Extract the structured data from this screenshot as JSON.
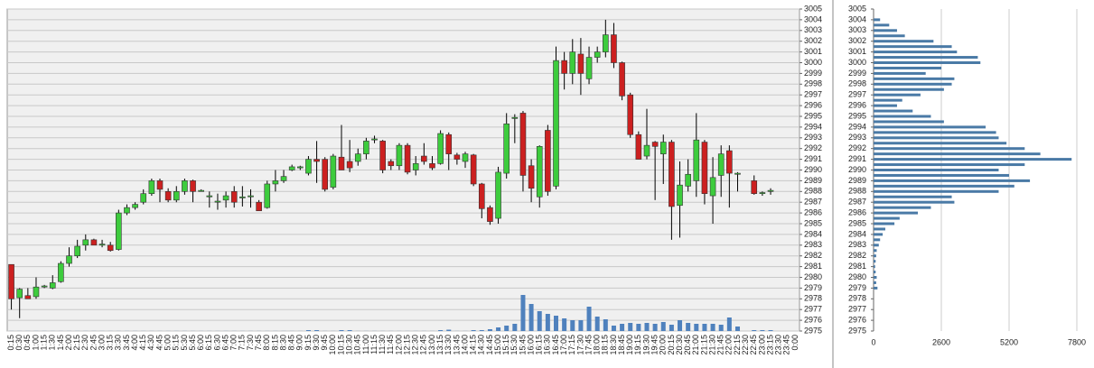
{
  "chart_data": [
    {
      "type": "candlestick",
      "categories": [
        "0:15",
        "0:30",
        "0:45",
        "1:00",
        "1:15",
        "1:30",
        "1:45",
        "2:00",
        "2:15",
        "2:30",
        "2:45",
        "3:00",
        "3:15",
        "3:30",
        "3:45",
        "4:00",
        "4:15",
        "4:30",
        "4:45",
        "5:00",
        "5:15",
        "5:30",
        "5:45",
        "6:00",
        "6:15",
        "6:30",
        "6:45",
        "7:00",
        "7:15",
        "7:30",
        "7:45",
        "8:00",
        "8:15",
        "8:30",
        "8:45",
        "9:00",
        "9:15",
        "9:30",
        "9:45",
        "10:00",
        "10:15",
        "10:30",
        "10:45",
        "11:00",
        "11:15",
        "11:30",
        "11:45",
        "12:00",
        "12:15",
        "12:30",
        "12:45",
        "13:00",
        "13:15",
        "13:30",
        "13:45",
        "14:00",
        "14:15",
        "14:30",
        "14:45",
        "15:00",
        "15:15",
        "15:30",
        "15:45",
        "16:00",
        "16:15",
        "16:30",
        "16:45",
        "17:00",
        "17:15",
        "17:30",
        "17:45",
        "18:00",
        "18:15",
        "18:30",
        "18:45",
        "19:00",
        "19:15",
        "19:30",
        "19:45",
        "20:00",
        "20:15",
        "20:30",
        "20:45",
        "21:00",
        "21:15",
        "21:30",
        "21:45",
        "22:00",
        "22:15",
        "22:30",
        "22:45",
        "23:00",
        "23:15",
        "23:30",
        "23:45",
        "0:00"
      ],
      "open": [
        2981.2,
        2978.1,
        2978.3,
        2978.2,
        2979.1,
        2979,
        2979.6,
        2981.3,
        2982,
        2983,
        2983.5,
        2983,
        2983,
        2982.6,
        2986,
        2986.5,
        2987,
        2987.8,
        2989,
        2988,
        2987.2,
        2988,
        2989,
        2988,
        2987.5,
        2987,
        2987.2,
        2988,
        2987.4,
        2987.5,
        2987,
        2986.5,
        2988.7,
        2989,
        2990,
        2990.2,
        2989.7,
        2991,
        2991,
        2988.4,
        2991.2,
        2990.8,
        2990.8,
        2991.5,
        2992.8,
        2992.7,
        2990.8,
        2990.4,
        2992.3,
        2990,
        2991.3,
        2990.6,
        2990.6,
        2993.3,
        2991.4,
        2990.8,
        2991.4,
        2988.7,
        2986.5,
        2985.5,
        2989.7,
        2994.8,
        2995.3,
        2990.4,
        2987.5,
        2993.7,
        2988.5,
        3000.2,
        2999,
        3000.8,
        2998.5,
        3000.5,
        3001,
        3002.6,
        3000,
        2997,
        2993.3,
        2991.3,
        2992.6,
        2991.5,
        2992.6,
        2986.7,
        2988.5,
        2989,
        2992.6,
        2987.6,
        2989.5,
        2991.8,
        2989.6,
        null,
        2989,
        2987.8,
        2988,
        null,
        null,
        null
      ],
      "high": [
        2981.2,
        2979,
        2979,
        2980,
        2979.3,
        2980.2,
        2981.5,
        2982.8,
        2983.5,
        2984,
        2983.6,
        2983.5,
        2983.3,
        2986.3,
        2986.8,
        2987,
        2988.2,
        2989.2,
        2989.2,
        2988.3,
        2988.5,
        2989.2,
        2989.1,
        2988.2,
        2988,
        2987.8,
        2988,
        2988.5,
        2988.5,
        2988.2,
        2987.2,
        2989,
        2990,
        2990,
        2990.5,
        2990.4,
        2991.3,
        2992.7,
        2991.2,
        2991.5,
        2994.2,
        2992.8,
        2992,
        2993,
        2993.2,
        2992.8,
        2991,
        2992.5,
        2992.5,
        2991.3,
        2992.5,
        2991.3,
        2993.7,
        2993.5,
        2991.6,
        2991.7,
        2991.5,
        2988.8,
        2986.7,
        2990.3,
        2995.3,
        2995.2,
        2995.5,
        2991,
        2992.3,
        2994.2,
        3001.5,
        3001,
        3002.2,
        3002.3,
        3001.5,
        3001.5,
        3004,
        3003.7,
        3000.1,
        2997.2,
        2993.6,
        2995.7,
        2992.7,
        2993.3,
        2992.8,
        2990.8,
        2991,
        2995.3,
        2992.8,
        2991.2,
        2992.3,
        2992.3,
        2989.8,
        null,
        2989.5,
        2988,
        2988.3,
        null,
        null,
        null
      ],
      "low": [
        2977,
        2976.2,
        2978,
        2978,
        2979,
        2978.9,
        2979.5,
        2981,
        2981.8,
        2982.5,
        2983,
        2982.8,
        2982.4,
        2982.5,
        2985.8,
        2986.3,
        2986.8,
        2987.6,
        2987,
        2987,
        2987,
        2987.7,
        2987,
        2988,
        2986.5,
        2986.3,
        2986.5,
        2986.5,
        2986.6,
        2986.5,
        2986.2,
        2986.4,
        2988,
        2988.8,
        2989.9,
        2990,
        2989.5,
        2988.8,
        2988,
        2988.2,
        2990,
        2989.8,
        2990.4,
        2991,
        2992.5,
        2989.7,
        2990,
        2990,
        2989.6,
        2989.5,
        2990.5,
        2990,
        2990.5,
        2990,
        2990.5,
        2990.2,
        2988.5,
        2985.5,
        2984.9,
        2985,
        2989.2,
        2992.5,
        2988,
        2987,
        2986.5,
        2987.6,
        2988.2,
        2997.5,
        2998,
        2997,
        2998,
        3000,
        3000.5,
        2999.5,
        2996.5,
        2993,
        2991,
        2991,
        2987.2,
        2988.7,
        2983.5,
        2983.7,
        2988,
        2987.5,
        2986.8,
        2985,
        2987.5,
        2986.5,
        2988,
        null,
        2987.7,
        2987.6,
        2987.7,
        null,
        null,
        null
      ],
      "close": [
        2978,
        2978.9,
        2978,
        2979.1,
        2979.2,
        2979.5,
        2981.3,
        2982,
        2982.9,
        2983.5,
        2983,
        2983.1,
        2982.5,
        2986,
        2986.5,
        2986.8,
        2987.8,
        2989,
        2988.2,
        2987.2,
        2988,
        2989,
        2988,
        2988.1,
        2987.6,
        2987.1,
        2987.6,
        2987,
        2987.5,
        2987.6,
        2986.2,
        2988.7,
        2989,
        2989.4,
        2990.3,
        2990.3,
        2991,
        2990.8,
        2988.2,
        2991.3,
        2990,
        2990.2,
        2991.5,
        2992.7,
        2992.9,
        2990,
        2990.4,
        2992.3,
        2989.8,
        2990.6,
        2990.8,
        2990.2,
        2993.4,
        2991.5,
        2991,
        2991.5,
        2988.7,
        2986.4,
        2985.2,
        2989.8,
        2994.3,
        2994.9,
        2989.5,
        2988.3,
        2992.2,
        2988,
        3000.2,
        2999,
        3001,
        2999,
        3000.5,
        3001,
        3002.6,
        3000,
        2996.9,
        2993.3,
        2991,
        2992.3,
        2992.2,
        2992.6,
        2986.6,
        2988.6,
        2989.6,
        2992.8,
        2987.8,
        2989.3,
        2991.5,
        2989.7,
        2989.7,
        null,
        2987.8,
        2987.9,
        2988.1,
        null,
        null,
        null
      ],
      "volume": [
        10,
        10,
        10,
        10,
        10,
        10,
        10,
        10,
        10,
        10,
        10,
        10,
        10,
        10,
        10,
        10,
        10,
        10,
        10,
        10,
        10,
        10,
        10,
        10,
        10,
        10,
        10,
        10,
        10,
        10,
        10,
        10,
        10,
        10,
        10,
        10,
        100,
        100,
        10,
        10,
        100,
        100,
        10,
        10,
        10,
        10,
        10,
        10,
        10,
        10,
        10,
        10,
        100,
        150,
        10,
        10,
        100,
        100,
        200,
        400,
        600,
        800,
        4000,
        3000,
        2200,
        1900,
        1700,
        1400,
        1200,
        1200,
        2700,
        1600,
        1300,
        600,
        800,
        900,
        800,
        900,
        800,
        1000,
        700,
        1200,
        900,
        800,
        800,
        800,
        700,
        1500,
        500,
        null,
        100,
        100,
        100,
        null,
        null,
        null
      ],
      "up_color": "#3dcc3d",
      "down_color": "#cc2020",
      "volume_color": "#4f81bd",
      "ylim": [
        2975,
        3005
      ],
      "yticks": [
        2975,
        2976,
        2977,
        2978,
        2979,
        2980,
        2981,
        2982,
        2983,
        2984,
        2985,
        2986,
        2987,
        2988,
        2989,
        2990,
        2991,
        2992,
        2993,
        2994,
        2995,
        2996,
        2997,
        2998,
        2999,
        3000,
        3001,
        3002,
        3003,
        3004,
        3005
      ],
      "grid": true
    },
    {
      "type": "barh",
      "y": [
        2979,
        2979.5,
        2980,
        2980.5,
        2981,
        2981.5,
        2982,
        2982.5,
        2983,
        2983.5,
        2984,
        2984.5,
        2985,
        2985.5,
        2986,
        2986.5,
        2987,
        2987.5,
        2988,
        2988.5,
        2989,
        2989.5,
        2990,
        2990.5,
        2991,
        2991.5,
        2992,
        2992.5,
        2993,
        2993.5,
        2994,
        2994.5,
        2995,
        2995.5,
        2996,
        2996.5,
        2997,
        2997.5,
        2998,
        2998.5,
        2999,
        2999.5,
        3000,
        3000.5,
        3001,
        3001.5,
        3002,
        3002.5,
        3003,
        3003.5,
        3004
      ],
      "values": [
        150,
        100,
        120,
        80,
        60,
        80,
        100,
        120,
        200,
        250,
        350,
        450,
        800,
        1000,
        1700,
        2200,
        3100,
        3000,
        4800,
        5400,
        6000,
        5200,
        4800,
        5800,
        7600,
        6400,
        5800,
        5100,
        4800,
        4700,
        4300,
        2700,
        2200,
        1500,
        900,
        1100,
        1800,
        2700,
        3000,
        3100,
        2000,
        2600,
        4100,
        4000,
        3200,
        3000,
        2300,
        1200,
        900,
        600,
        250
      ],
      "color": "#4a7aa6",
      "xlim": [
        0,
        7800
      ],
      "xticks": [
        0,
        2600,
        5200,
        7800
      ],
      "ylim": [
        2975,
        3005
      ],
      "yticks": [
        2975,
        2976,
        2977,
        2978,
        2979,
        2980,
        2981,
        2982,
        2983,
        2984,
        2985,
        2986,
        2987,
        2988,
        2989,
        2990,
        2991,
        2992,
        2993,
        2994,
        2995,
        2996,
        2997,
        2998,
        2999,
        3000,
        3001,
        3002,
        3003,
        3004,
        3005
      ],
      "grid": true
    }
  ]
}
